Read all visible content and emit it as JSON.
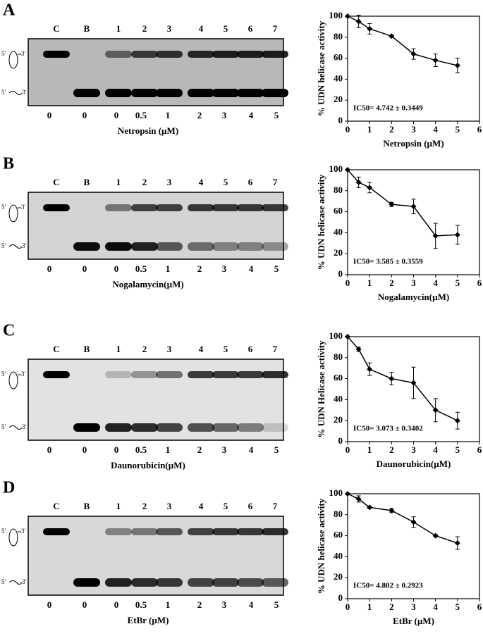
{
  "strand_ends": [
    "5'",
    "3'"
  ],
  "panels": [
    {
      "letter": "A",
      "lanes": [
        "C",
        "B",
        "1",
        "2",
        "3",
        "4",
        "5",
        "6",
        "7"
      ],
      "concentrations": [
        "0",
        "0",
        "0",
        "0.5",
        "1",
        "2",
        "3",
        "4",
        "5"
      ],
      "drug_label": "Netropsin (µM)"
    },
    {
      "letter": "B",
      "lanes": [
        "C",
        "B",
        "1",
        "2",
        "3",
        "4",
        "5",
        "6",
        "7"
      ],
      "concentrations": [
        "0",
        "0",
        "0",
        "0.5",
        "1",
        "2",
        "3",
        "4",
        "5"
      ],
      "drug_label": "Nogalamycin(µM)"
    },
    {
      "letter": "C",
      "lanes": [
        "C",
        "B",
        "1",
        "2",
        "3",
        "4",
        "5",
        "6",
        "7"
      ],
      "concentrations": [
        "0",
        "0",
        "0",
        "0.5",
        "1",
        "2",
        "3",
        "4",
        "5"
      ],
      "drug_label": "Daunorubicin(µM)"
    },
    {
      "letter": "D",
      "lanes": [
        "C",
        "B",
        "1",
        "2",
        "3",
        "4",
        "5",
        "6",
        "7"
      ],
      "concentrations": [
        "0",
        "0",
        "0",
        "0.5",
        "1",
        "2",
        "3",
        "4",
        "5"
      ],
      "drug_label": "EtBr (µM)"
    }
  ],
  "chart_data": [
    {
      "type": "line",
      "x_label": "Netropsin (µM)",
      "y_label": "% UDN helicase activity",
      "annotation": "IC50= 4.742 ± 0.3449",
      "x": [
        0,
        0.5,
        1,
        2,
        3,
        4,
        5
      ],
      "series": [
        {
          "color": "#000000",
          "values": [
            100,
            95,
            88,
            81,
            64,
            58,
            53
          ],
          "errors": [
            0,
            6,
            5,
            1,
            5,
            6,
            7
          ]
        }
      ],
      "xlim": [
        0,
        6
      ],
      "xticks": [
        0,
        1,
        2,
        3,
        4,
        5,
        6
      ],
      "ylim": [
        0,
        100
      ],
      "yticks": [
        0,
        20,
        40,
        60,
        80,
        100
      ]
    },
    {
      "type": "line",
      "x_label": "Nogalamycin(µM)",
      "y_label": "% UDN helicase activity",
      "annotation": "IC50= 3.585 ± 0.3559",
      "x": [
        0,
        0.5,
        1,
        2,
        3,
        4,
        5
      ],
      "series": [
        {
          "color": "#000000",
          "values": [
            100,
            88,
            83,
            67,
            65,
            37,
            38
          ],
          "errors": [
            0,
            5,
            5,
            2,
            7,
            12,
            9
          ]
        }
      ],
      "xlim": [
        0,
        6
      ],
      "xticks": [
        0,
        1,
        2,
        3,
        4,
        5,
        6
      ],
      "ylim": [
        0,
        100
      ],
      "yticks": [
        0,
        20,
        40,
        60,
        80,
        100
      ]
    },
    {
      "type": "line",
      "x_label": "Daunorubicin(µM)",
      "y_label": "% UDN Helicase activity",
      "annotation": "IC50= 3.073 ± 0.3402",
      "x": [
        0,
        0.5,
        1,
        2,
        3,
        4,
        5
      ],
      "series": [
        {
          "color": "#000000",
          "values": [
            100,
            88,
            69,
            60,
            56,
            30,
            20
          ],
          "errors": [
            0,
            2,
            6,
            6,
            15,
            11,
            8
          ]
        }
      ],
      "xlim": [
        0,
        6
      ],
      "xticks": [
        0,
        1,
        2,
        3,
        4,
        5,
        6
      ],
      "ylim": [
        0,
        100
      ],
      "yticks": [
        0,
        20,
        40,
        60,
        80,
        100
      ]
    },
    {
      "type": "line",
      "x_label": "EtBr (µM)",
      "y_label": "% UDN helicase activity",
      "annotation": "IC50= 4.802 ± 0.2923",
      "x": [
        0,
        0.5,
        1,
        2,
        3,
        4,
        5
      ],
      "series": [
        {
          "color": "#000000",
          "values": [
            100,
            95,
            87,
            84,
            73,
            60,
            53
          ],
          "errors": [
            0,
            3,
            1,
            2,
            5,
            1,
            6
          ]
        }
      ],
      "xlim": [
        0,
        6
      ],
      "xticks": [
        0,
        1,
        2,
        3,
        4,
        5,
        6
      ],
      "ylim": [
        0,
        100
      ],
      "yticks": [
        0,
        20,
        40,
        60,
        80,
        100
      ]
    }
  ]
}
